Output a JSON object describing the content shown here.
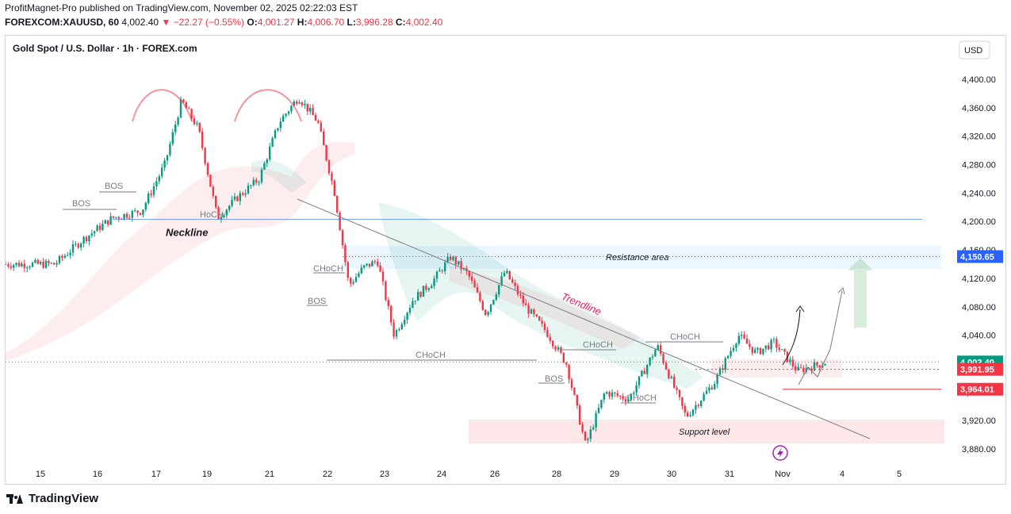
{
  "header": {
    "publisher_line": "ProfitMagnet-Pro published on TradingView.com, November 02, 2025 02:22:03 EST",
    "symbol": "FOREXCOM:XAUUSD, 60",
    "last": "4,002.40",
    "change": "▼ −22.27 (−0.55%)",
    "o_label": "O:",
    "o_value": "4,001.27",
    "h_label": "H:",
    "h_value": "4,006.70",
    "l_label": "L:",
    "l_value": "3,996.28",
    "c_label": "C:",
    "c_value": "4,002.40"
  },
  "footer": {
    "brand": "TradingView"
  },
  "colors": {
    "up": "#089981",
    "down": "#f23645",
    "accent": "#2962ff"
  },
  "chart_data": {
    "type": "candlestick",
    "title": "Gold Spot / U.S. Dollar · 1h · FOREX.com",
    "currency": "USD",
    "ylim": [
      3860,
      4420
    ],
    "y_ticks": [
      3880,
      3920,
      3960,
      4000,
      4040,
      4080,
      4120,
      4160,
      4200,
      4240,
      4280,
      4320,
      4360,
      4400
    ],
    "y_tick_labels": [
      "3,880.00",
      "3,920.00",
      "3,960.00",
      "4,000.00",
      "4,040.00",
      "4,080.00",
      "4,120.00",
      "4,160.00",
      "4,200.00",
      "4,240.00",
      "4,280.00",
      "4,320.00",
      "4,360.00",
      "4,400.00"
    ],
    "x_labels": [
      "15",
      "16",
      "17",
      "19",
      "21",
      "22",
      "23",
      "24",
      "26",
      "28",
      "29",
      "30",
      "31",
      "Nov",
      "4",
      "5"
    ],
    "price_path": [
      [
        "15",
        4140
      ],
      [
        "15",
        4175
      ],
      [
        "16",
        4205
      ],
      [
        "16",
        4215
      ],
      [
        "17",
        4280
      ],
      [
        "17",
        4370
      ],
      [
        "17",
        4330
      ],
      [
        "19",
        4205
      ],
      [
        "19",
        4235
      ],
      [
        "19",
        4260
      ],
      [
        "21",
        4340
      ],
      [
        "21",
        4375
      ],
      [
        "21",
        4340
      ],
      [
        "22",
        4240
      ],
      [
        "22",
        4110
      ],
      [
        "22",
        4135
      ],
      [
        "22",
        4145
      ],
      [
        "23",
        4040
      ],
      [
        "23",
        4090
      ],
      [
        "23",
        4115
      ],
      [
        "24",
        4150
      ],
      [
        "24",
        4125
      ],
      [
        "24",
        4070
      ],
      [
        "26",
        4130
      ],
      [
        "26",
        4080
      ],
      [
        "26",
        4045
      ],
      [
        "28",
        4000
      ],
      [
        "28",
        3885
      ],
      [
        "28",
        3960
      ],
      [
        "29",
        3950
      ],
      [
        "29",
        4025
      ],
      [
        "30",
        3925
      ],
      [
        "30",
        3975
      ],
      [
        "31",
        4040
      ],
      [
        "31",
        4015
      ],
      [
        "31",
        4030
      ],
      [
        "Nov",
        3990
      ],
      [
        "Nov",
        4002.4
      ]
    ],
    "price_labels": [
      {
        "value": 4150.65,
        "label": "4,150.65",
        "color": "#2962ff"
      },
      {
        "value": 4002.4,
        "label": "4,002.40",
        "color": "#089981"
      },
      {
        "value": 3991.95,
        "label": "3,991.95",
        "color": "#f23645"
      },
      {
        "value": 3964.01,
        "label": "3,964.01",
        "color": "#f23645"
      }
    ],
    "annotations": {
      "neckline": "Neckline",
      "trendline": "Trendline",
      "resistance": "Resistance area",
      "support": "Support level",
      "bos": "BOS",
      "choch": "CHoCH",
      "choch_partial": "HoCH"
    }
  }
}
